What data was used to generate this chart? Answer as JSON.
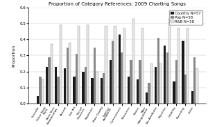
{
  "title": "Proportion of Category References: 2009 Charting Songs",
  "ylabel": "Proportion",
  "categories": [
    "Genitalia",
    "Other Body\nParts",
    "Short-Term\nRelationships",
    "Arousal",
    "Sex Act",
    "Sexual\nPractices",
    "Repetition",
    "Mate Quality",
    "Fidelity/\nAvoidance",
    "Commitment",
    "Resources",
    "Status",
    "Mate\nManipulation",
    "Sex-Attributes",
    "Rejection",
    "Infidelity",
    "Parenting",
    "Other"
  ],
  "country": [
    0.05,
    0.23,
    0.23,
    0.22,
    0.17,
    0.2,
    0.16,
    0.16,
    0.27,
    0.43,
    0.17,
    0.15,
    0.07,
    0.23,
    0.36,
    0.14,
    0.39,
    0.08
  ],
  "pop": [
    0.17,
    0.29,
    0.17,
    0.35,
    0.31,
    0.23,
    0.35,
    0.19,
    0.39,
    0.32,
    0.27,
    0.27,
    0.13,
    0.41,
    0.32,
    0.27,
    0.18,
    0.29
  ],
  "rnb": [
    0.15,
    0.37,
    0.49,
    0.38,
    0.48,
    0.49,
    0.2,
    0.48,
    0.48,
    0.47,
    0.53,
    0.47,
    0.25,
    0.25,
    0.53,
    0.47,
    0.47,
    0.22
  ],
  "legend": [
    "Country N=57",
    "Pop N=58",
    "R&B N=58"
  ],
  "bar_colors": [
    "#1a1a1a",
    "#888888",
    "#e8e8e8"
  ],
  "bar_edge_colors": [
    "none",
    "none",
    "#888888"
  ],
  "ylim": [
    0,
    0.6
  ],
  "yticks": [
    0.0,
    0.1,
    0.2,
    0.3,
    0.4,
    0.5,
    0.6
  ]
}
